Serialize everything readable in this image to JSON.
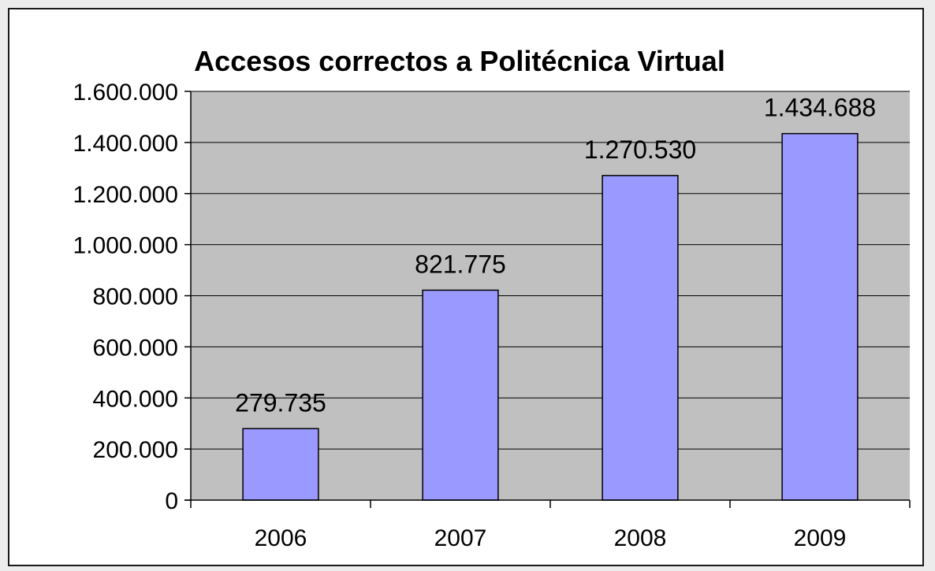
{
  "chart_data": {
    "type": "bar",
    "title": "Accesos correctos a Politécnica Virtual",
    "categories": [
      "2006",
      "2007",
      "2008",
      "2009"
    ],
    "values": [
      279735,
      821775,
      1270530,
      1434688
    ],
    "data_labels": [
      "279.735",
      "821.775",
      "1.270.530",
      "1.434.688"
    ],
    "yticks": [
      0,
      200000,
      400000,
      600000,
      800000,
      1000000,
      1200000,
      1400000,
      1600000
    ],
    "ytick_labels": [
      "0",
      "200.000",
      "400.000",
      "600.000",
      "800.000",
      "1.000.000",
      "1.200.000",
      "1.400.000",
      "1.600.000"
    ],
    "ylim": [
      0,
      1600000
    ],
    "xlabel": "",
    "ylabel": "",
    "grid": true,
    "legend": "none"
  },
  "colors": {
    "bar_fill": "#9999ff",
    "plot_background": "#c0c0c0",
    "gridline": "#000000",
    "border": "#1a1a1a"
  }
}
